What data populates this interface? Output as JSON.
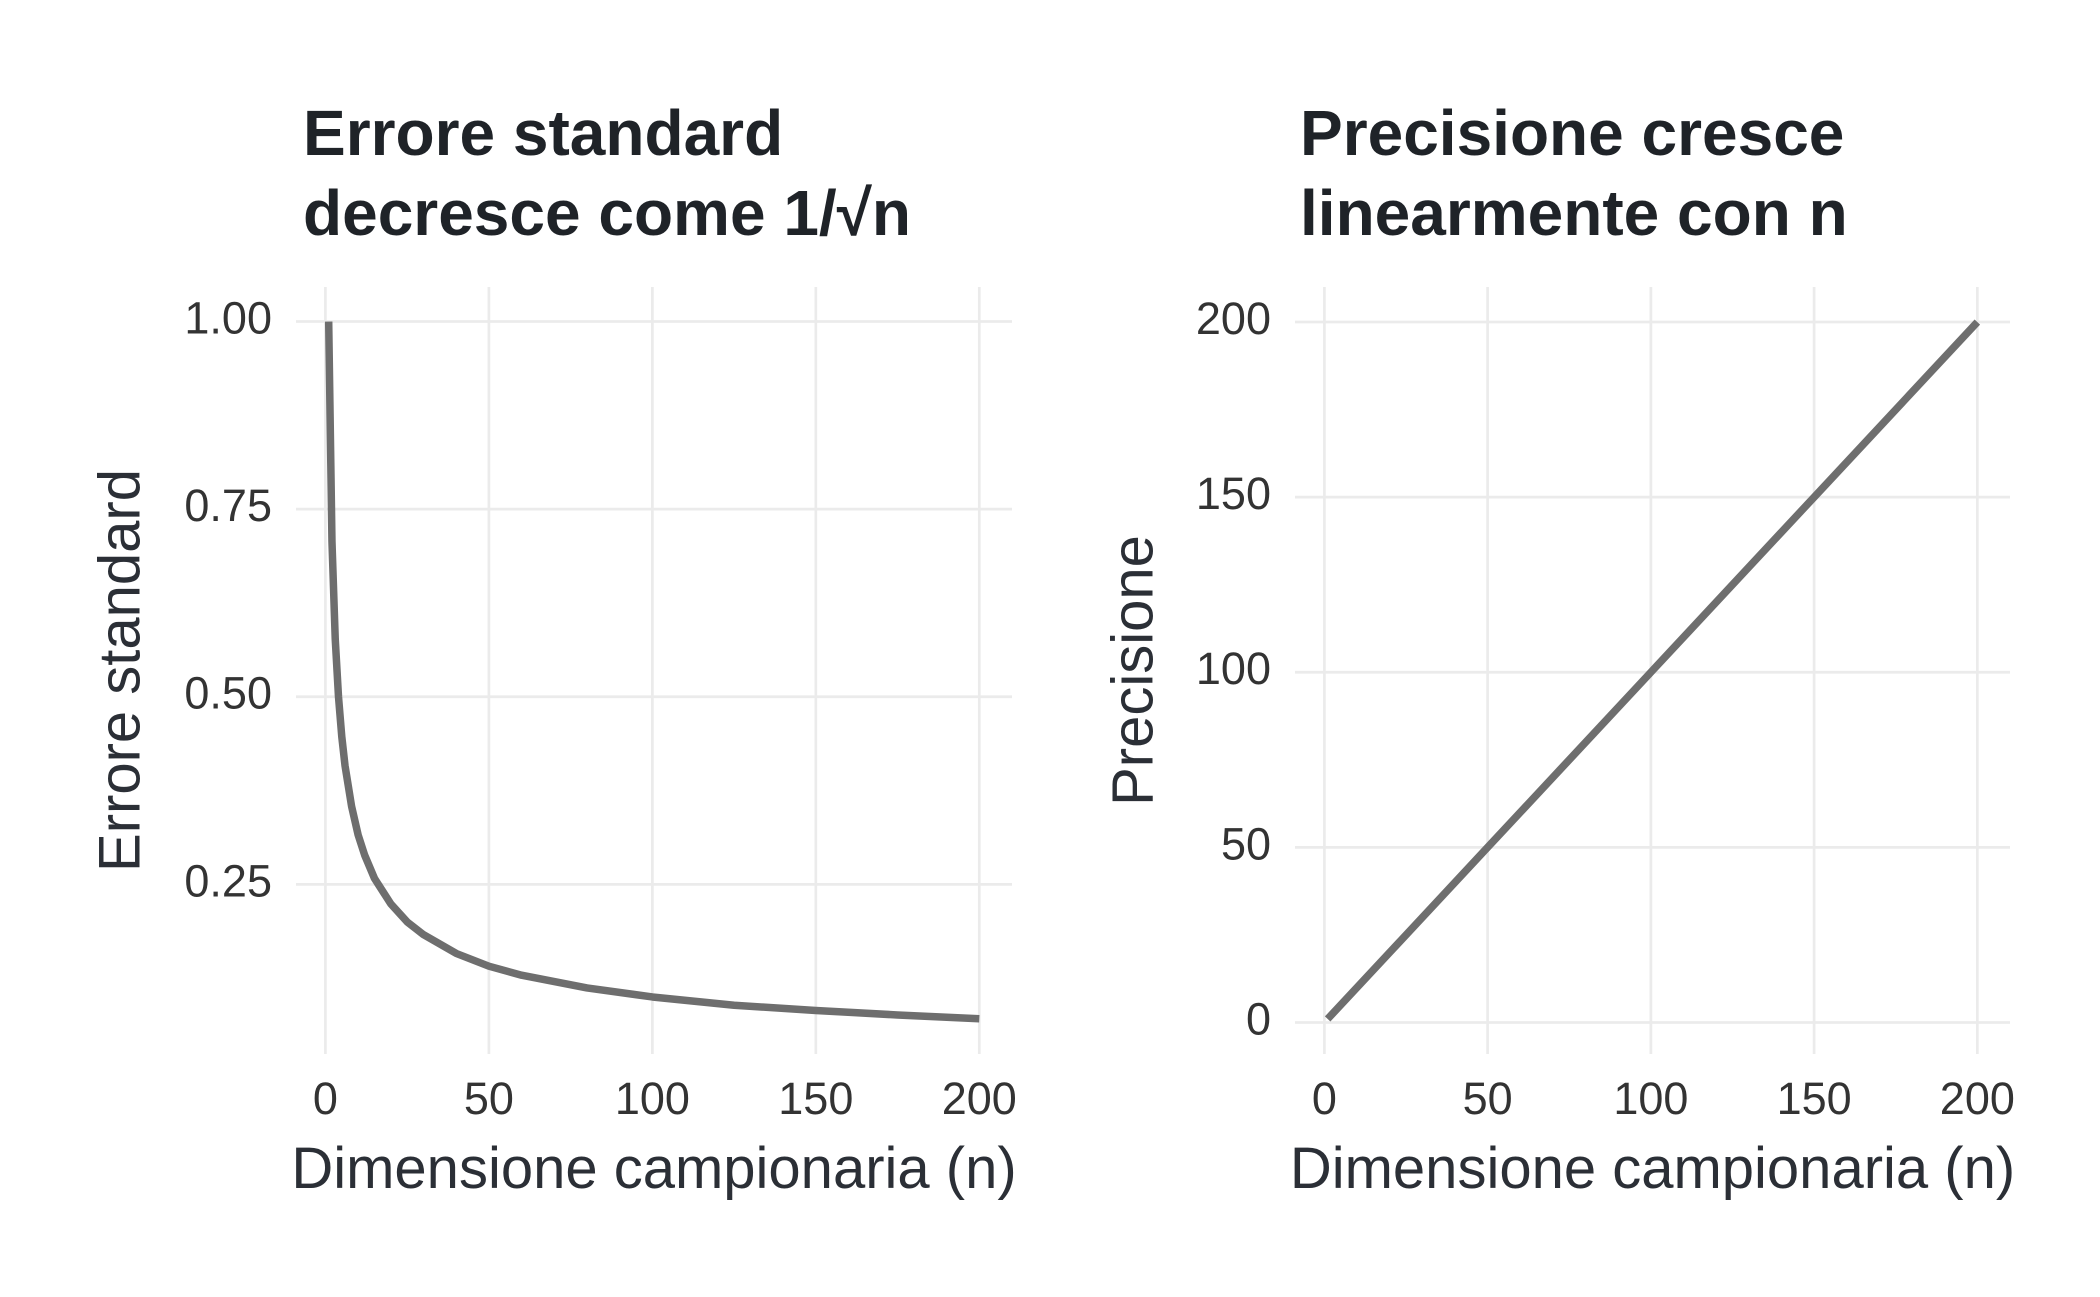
{
  "chart_data": [
    {
      "type": "line",
      "title": [
        "Errore standard",
        "decresce come 1/√n"
      ],
      "x_label": "Dimensione campionaria (n)",
      "y_label": "Errore standard",
      "x": [
        1,
        2,
        3,
        4,
        5,
        6,
        8,
        10,
        12,
        15,
        20,
        25,
        30,
        40,
        50,
        60,
        80,
        100,
        125,
        150,
        175,
        200
      ],
      "values": [
        1,
        0.707,
        0.577,
        0.5,
        0.447,
        0.408,
        0.354,
        0.316,
        0.289,
        0.258,
        0.224,
        0.2,
        0.183,
        0.158,
        0.141,
        0.129,
        0.112,
        0.1,
        0.089,
        0.082,
        0.076,
        0.071
      ],
      "color": "#6e6e6e",
      "xlim": [
        -9,
        210
      ],
      "xticks": [
        0,
        50,
        100,
        150,
        200
      ],
      "ylim": [
        0.024,
        1.046
      ],
      "yticks": [
        {
          "value": 0.25,
          "label": "0.25"
        },
        {
          "value": 0.5,
          "label": "0.50"
        },
        {
          "value": 0.75,
          "label": "0.75"
        },
        {
          "value": 1,
          "label": "1.00"
        }
      ],
      "grid": true
    },
    {
      "type": "line",
      "title": [
        "Precisione cresce",
        "linearmente con n"
      ],
      "x_label": "Dimensione campionaria (n)",
      "y_label": "Precisione",
      "x": [
        1,
        50,
        100,
        150,
        200
      ],
      "values": [
        1,
        50,
        100,
        150,
        200
      ],
      "color": "#6e6e6e",
      "xlim": [
        -9,
        210
      ],
      "xticks": [
        0,
        50,
        100,
        150,
        200
      ],
      "ylim": [
        -9,
        210
      ],
      "yticks": [
        0,
        50,
        100,
        150,
        200
      ],
      "grid": true
    }
  ]
}
